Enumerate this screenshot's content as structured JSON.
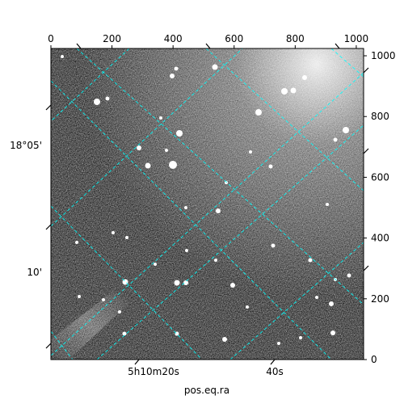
{
  "figure": {
    "xlabel": "pos.eq.ra",
    "ylabel": "",
    "grid_color": "#00ffff",
    "image_colormap": "gray"
  },
  "chart_data": {
    "type": "image",
    "title": "",
    "pixel_axes": {
      "xlim": [
        0,
        1024
      ],
      "ylim": [
        0,
        1024
      ],
      "x_ticks": [
        0,
        200,
        400,
        600,
        800,
        1000
      ],
      "x_tick_labels": [
        "0",
        "200",
        "400",
        "600",
        "800",
        "1000"
      ],
      "y_ticks": [
        0,
        200,
        400,
        600,
        800,
        1000
      ],
      "y_tick_labels": [
        "0",
        "200",
        "400",
        "600",
        "800",
        "1000"
      ]
    },
    "world_axes": {
      "ra_tick_labels": [
        "5h10m20s",
        "40s"
      ],
      "dec_tick_labels": [
        "18°05'",
        "10'"
      ],
      "xlabel": "pos.eq.ra"
    },
    "grid": true
  }
}
